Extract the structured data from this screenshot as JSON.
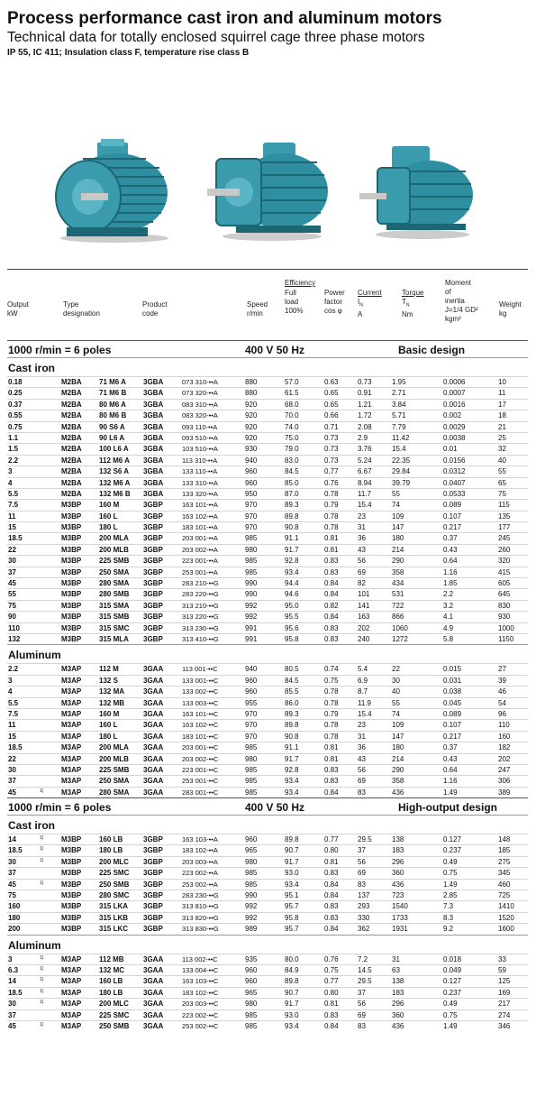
{
  "header": {
    "title": "Process performance cast iron and aluminum motors",
    "subtitle": "Technical data for totally enclosed squirrel cage three phase motors",
    "spec": "IP 55, IC 411; Insulation class F, temperature rise class B"
  },
  "photos": [
    "motor-photo-1",
    "motor-photo-2",
    "motor-photo-3"
  ],
  "colors": {
    "motor_body": "#2f8fa0",
    "motor_shade": "#1d6674",
    "motor_light": "#5cb5c4",
    "shaft": "#c8c8c8"
  },
  "columns": {
    "output": [
      "Output",
      "kW"
    ],
    "type": [
      "Type",
      "designation"
    ],
    "product": [
      "Product",
      "code"
    ],
    "speed": [
      "Speed",
      "r/min"
    ],
    "efficiency_group": "Efficiency",
    "efficiency_full": [
      "Full",
      "load",
      "100%"
    ],
    "power_factor": [
      "Power",
      "factor",
      "cos φ"
    ],
    "current": "Current",
    "current_sub": [
      "I",
      "A"
    ],
    "torque": "Torque",
    "torque_sub": [
      "T",
      "Nm"
    ],
    "moment": [
      "Moment",
      "of",
      "inertia",
      "J=1/4 GD²",
      "kgm²"
    ],
    "weight": [
      "Weight",
      "kg"
    ]
  },
  "sections": [
    {
      "header": {
        "speed": "1000 r/min = 6 poles",
        "voltage": "400 V 50 Hz",
        "design": "Basic design"
      },
      "groups": [
        {
          "name": "Cast iron",
          "rows": [
            [
              "0.18",
              "",
              "M2BA",
              "71 M6 A",
              "3GBA",
              "073 310-••A",
              "880",
              "57.0",
              "0.63",
              "0.73",
              "1.95",
              "0.0006",
              "10"
            ],
            [
              "0.25",
              "",
              "M2BA",
              "71 M6 B",
              "3GBA",
              "073 320-••A",
              "880",
              "61.5",
              "0.65",
              "0.91",
              "2.71",
              "0.0007",
              "11"
            ],
            [
              "0.37",
              "",
              "M2BA",
              "80 M6 A",
              "3GBA",
              "083 310-••A",
              "920",
              "68.0",
              "0.65",
              "1.21",
              "3.84",
              "0.0016",
              "17"
            ],
            [
              "0.55",
              "",
              "M2BA",
              "80 M6 B",
              "3GBA",
              "083 320-••A",
              "920",
              "70.0",
              "0.66",
              "1.72",
              "5.71",
              "0.002",
              "18"
            ],
            [
              "0.75",
              "",
              "M2BA",
              "90 S6 A",
              "3GBA",
              "093 110-••A",
              "920",
              "74.0",
              "0.71",
              "2.08",
              "7.79",
              "0.0029",
              "21"
            ],
            [
              "1.1",
              "",
              "M2BA",
              "90 L6 A",
              "3GBA",
              "093 510-••A",
              "920",
              "75.0",
              "0.73",
              "2.9",
              "11.42",
              "0.0038",
              "25"
            ],
            [
              "1.5",
              "",
              "M2BA",
              "100 L6 A",
              "3GBA",
              "103 510-••A",
              "930",
              "79.0",
              "0.73",
              "3.76",
              "15.4",
              "0.01",
              "32"
            ],
            [
              "2.2",
              "",
              "M2BA",
              "112 M6 A",
              "3GBA",
              "113 310-••A",
              "940",
              "83.0",
              "0.73",
              "5.24",
              "22.35",
              "0.0156",
              "40"
            ],
            [
              "3",
              "",
              "M2BA",
              "132 S6 A",
              "3GBA",
              "133 110-••A",
              "960",
              "84.5",
              "0.77",
              "6.67",
              "29.84",
              "0.0312",
              "55"
            ],
            [
              "4",
              "",
              "M2BA",
              "132 M6 A",
              "3GBA",
              "133 310-••A",
              "960",
              "85.0",
              "0.76",
              "8.94",
              "39.79",
              "0.0407",
              "65"
            ],
            [
              "5.5",
              "",
              "M2BA",
              "132 M6 B",
              "3GBA",
              "133 320-••A",
              "950",
              "87.0",
              "0.78",
              "11.7",
              "55",
              "0.0533",
              "75"
            ],
            [
              "7.5",
              "",
              "M3BP",
              "160 M",
              "3GBP",
              "163 101-••A",
              "970",
              "89.3",
              "0.79",
              "15.4",
              "74",
              "0.089",
              "115"
            ],
            [
              "11",
              "",
              "M3BP",
              "160 L",
              "3GBP",
              "163 102-••A",
              "970",
              "89.8",
              "0.78",
              "23",
              "109",
              "0.107",
              "135"
            ],
            [
              "15",
              "",
              "M3BP",
              "180 L",
              "3GBP",
              "183 101-••A",
              "970",
              "90.8",
              "0.78",
              "31",
              "147",
              "0.217",
              "177"
            ],
            [
              "18.5",
              "",
              "M3BP",
              "200 MLA",
              "3GBP",
              "203 001-••A",
              "985",
              "91.1",
              "0.81",
              "36",
              "180",
              "0.37",
              "245"
            ],
            [
              "22",
              "",
              "M3BP",
              "200 MLB",
              "3GBP",
              "203 002-••A",
              "980",
              "91.7",
              "0.81",
              "43",
              "214",
              "0.43",
              "260"
            ],
            [
              "30",
              "",
              "M3BP",
              "225 SMB",
              "3GBP",
              "223 001-••A",
              "985",
              "92.8",
              "0.83",
              "56",
              "290",
              "0.64",
              "320"
            ],
            [
              "37",
              "",
              "M3BP",
              "250 SMA",
              "3GBP",
              "253 001-••A",
              "985",
              "93.4",
              "0.83",
              "69",
              "358",
              "1.16",
              "415"
            ],
            [
              "45",
              "",
              "M3BP",
              "280 SMA",
              "3GBP",
              "283 210-••G",
              "990",
              "94.4",
              "0.84",
              "82",
              "434",
              "1.85",
              "605"
            ],
            [
              "55",
              "",
              "M3BP",
              "280 SMB",
              "3GBP",
              "283 220-••G",
              "990",
              "94.6",
              "0.84",
              "101",
              "531",
              "2.2",
              "645"
            ],
            [
              "75",
              "",
              "M3BP",
              "315 SMA",
              "3GBP",
              "313 210-••G",
              "992",
              "95.0",
              "0.82",
              "141",
              "722",
              "3.2",
              "830"
            ],
            [
              "90",
              "",
              "M3BP",
              "315 SMB",
              "3GBP",
              "313 220-••G",
              "992",
              "95.5",
              "0.84",
              "163",
              "866",
              "4.1",
              "930"
            ],
            [
              "110",
              "",
              "M3BP",
              "315 SMC",
              "3GBP",
              "313 230-••G",
              "991",
              "95.6",
              "0.83",
              "202",
              "1060",
              "4.9",
              "1000"
            ],
            [
              "132",
              "",
              "M3BP",
              "315 MLA",
              "3GBP",
              "313 410-••G",
              "991",
              "95.8",
              "0.83",
              "240",
              "1272",
              "5.8",
              "1150"
            ]
          ]
        },
        {
          "name": "Aluminum",
          "rows": [
            [
              "2.2",
              "",
              "M3AP",
              "112 M",
              "3GAA",
              "113 001-••C",
              "940",
              "80.5",
              "0.74",
              "5.4",
              "22",
              "0.015",
              "27"
            ],
            [
              "3",
              "",
              "M3AP",
              "132 S",
              "3GAA",
              "133 001-••C",
              "960",
              "84.5",
              "0.75",
              "6.9",
              "30",
              "0.031",
              "39"
            ],
            [
              "4",
              "",
              "M3AP",
              "132 MA",
              "3GAA",
              "133 002-••C",
              "960",
              "85.5",
              "0.78",
              "8.7",
              "40",
              "0.038",
              "46"
            ],
            [
              "5.5",
              "",
              "M3AP",
              "132 MB",
              "3GAA",
              "133 003-••C",
              "955",
              "86.0",
              "0.78",
              "11.9",
              "55",
              "0.045",
              "54"
            ],
            [
              "7.5",
              "",
              "M3AP",
              "160 M",
              "3GAA",
              "163 101-••C",
              "970",
              "89.3",
              "0.79",
              "15.4",
              "74",
              "0.089",
              "96"
            ],
            [
              "11",
              "",
              "M3AP",
              "160 L",
              "3GAA",
              "163 102-••C",
              "970",
              "89.8",
              "0.78",
              "23",
              "109",
              "0.107",
              "110"
            ],
            [
              "15",
              "",
              "M3AP",
              "180 L",
              "3GAA",
              "183 101-••C",
              "970",
              "90.8",
              "0.78",
              "31",
              "147",
              "0.217",
              "160"
            ],
            [
              "18.5",
              "",
              "M3AP",
              "200 MLA",
              "3GAA",
              "203 001-••C",
              "985",
              "91.1",
              "0.81",
              "36",
              "180",
              "0.37",
              "182"
            ],
            [
              "22",
              "",
              "M3AP",
              "200 MLB",
              "3GAA",
              "203 002-••C",
              "980",
              "91.7",
              "0.81",
              "43",
              "214",
              "0.43",
              "202"
            ],
            [
              "30",
              "",
              "M3AP",
              "225 SMB",
              "3GAA",
              "223 001-••C",
              "985",
              "92.8",
              "0.83",
              "56",
              "290",
              "0.64",
              "247"
            ],
            [
              "37",
              "",
              "M3AP",
              "250 SMA",
              "3GAA",
              "253 001-••C",
              "985",
              "93.4",
              "0.83",
              "69",
              "358",
              "1.16",
              "306"
            ],
            [
              "45",
              "1)",
              "M3AP",
              "280 SMA",
              "3GAA",
              "283 001-••C",
              "985",
              "93.4",
              "0.84",
              "83",
              "436",
              "1.49",
              "389"
            ]
          ]
        }
      ]
    },
    {
      "header": {
        "speed": "1000 r/min = 6 poles",
        "voltage": "400 V 50 Hz",
        "design": "High-output design"
      },
      "groups": [
        {
          "name": "Cast iron",
          "rows": [
            [
              "14",
              "1)",
              "M3BP",
              "160 LB",
              "3GBP",
              "163 103-••A",
              "960",
              "89.8",
              "0.77",
              "29.5",
              "138",
              "0.127",
              "148"
            ],
            [
              "18.5",
              "1)",
              "M3BP",
              "180 LB",
              "3GBP",
              "183 102-••A",
              "965",
              "90.7",
              "0.80",
              "37",
              "183",
              "0.237",
              "185"
            ],
            [
              "30",
              "1)",
              "M3BP",
              "200 MLC",
              "3GBP",
              "203 003-••A",
              "980",
              "91.7",
              "0.81",
              "56",
              "296",
              "0.49",
              "275"
            ],
            [
              "37",
              "",
              "M3BP",
              "225 SMC",
              "3GBP",
              "223 002-••A",
              "985",
              "93.0",
              "0.83",
              "69",
              "360",
              "0.75",
              "345"
            ],
            [
              "45",
              "1)",
              "M3BP",
              "250 SMB",
              "3GBP",
              "253 002-••A",
              "985",
              "93.4",
              "0.84",
              "83",
              "436",
              "1.49",
              "460"
            ],
            [
              "75",
              "",
              "M3BP",
              "280 SMC",
              "3GBP",
              "283 230-••G",
              "990",
              "95.1",
              "0.84",
              "137",
              "723",
              "2.85",
              "725"
            ],
            [
              "160",
              "",
              "M3BP",
              "315 LKA",
              "3GBP",
              "313 810-••G",
              "992",
              "95.7",
              "0.83",
              "293",
              "1540",
              "7.3",
              "1410"
            ],
            [
              "180",
              "",
              "M3BP",
              "315 LKB",
              "3GBP",
              "313 820-••G",
              "992",
              "95.8",
              "0.83",
              "330",
              "1733",
              "8.3",
              "1520"
            ],
            [
              "200",
              "",
              "M3BP",
              "315 LKC",
              "3GBP",
              "313 830-••G",
              "989",
              "95.7",
              "0.84",
              "362",
              "1931",
              "9.2",
              "1600"
            ]
          ]
        },
        {
          "name": "Aluminum",
          "rows": [
            [
              "3",
              "1)",
              "M3AP",
              "112 MB",
              "3GAA",
              "113 002-••C",
              "935",
              "80.0",
              "0.76",
              "7.2",
              "31",
              "0.018",
              "33"
            ],
            [
              "6.3",
              "1)",
              "M3AP",
              "132 MC",
              "3GAA",
              "133 004-••C",
              "960",
              "84.9",
              "0.75",
              "14.5",
              "63",
              "0.049",
              "59"
            ],
            [
              "14",
              "1)",
              "M3AP",
              "160 LB",
              "3GAA",
              "163 103-••C",
              "960",
              "89.8",
              "0.77",
              "29.5",
              "138",
              "0.127",
              "125"
            ],
            [
              "18.5",
              "1)",
              "M3AP",
              "180 LB",
              "3GAA",
              "183 102-••C",
              "965",
              "90.7",
              "0.80",
              "37",
              "183",
              "0.237",
              "169"
            ],
            [
              "30",
              "1)",
              "M3AP",
              "200 MLC",
              "3GAA",
              "203 003-••C",
              "980",
              "91.7",
              "0.81",
              "56",
              "296",
              "0.49",
              "217"
            ],
            [
              "37",
              "",
              "M3AP",
              "225 SMC",
              "3GAA",
              "223 002-••C",
              "985",
              "93.0",
              "0.83",
              "69",
              "360",
              "0.75",
              "274"
            ],
            [
              "45",
              "1)",
              "M3AP",
              "250 SMB",
              "3GAA",
              "253 002-••C",
              "985",
              "93.4",
              "0.84",
              "83",
              "436",
              "1.49",
              "346"
            ]
          ]
        }
      ]
    }
  ]
}
